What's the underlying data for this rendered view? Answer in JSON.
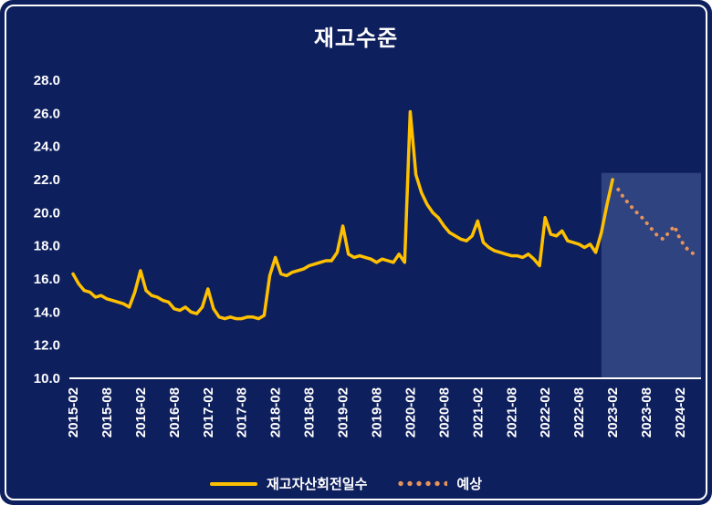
{
  "frame": {
    "background": "#0E1F5D",
    "border_color": "#FFFFFF"
  },
  "chart_data": {
    "type": "line",
    "title": "재고수준",
    "xlabel": "",
    "ylabel": "",
    "ylim": [
      10,
      28
    ],
    "ytick_step": 2,
    "grid": false,
    "legend_position": "bottom",
    "yticks": [
      "28.0",
      "26.0",
      "24.0",
      "22.0",
      "20.0",
      "18.0",
      "16.0",
      "14.0",
      "12.0",
      "10.0"
    ],
    "xticks": [
      "2015-02",
      "2015-08",
      "2016-02",
      "2016-08",
      "2017-02",
      "2017-08",
      "2018-02",
      "2018-08",
      "2019-02",
      "2019-08",
      "2020-02",
      "2020-08",
      "2021-02",
      "2021-08",
      "2022-02",
      "2022-08",
      "2023-02",
      "2023-08",
      "2024-02"
    ],
    "months_per_tick": 6,
    "x_start_label": "2015-02",
    "forecast_region": {
      "start_month": 94,
      "top_value": 22.4,
      "color": "#2E4380"
    },
    "series": [
      {
        "name": "재고자산회전일수",
        "color": "#FFC000",
        "style": "solid",
        "start_month": 0,
        "values": [
          16.3,
          15.7,
          15.3,
          15.2,
          14.9,
          15.0,
          14.8,
          14.7,
          14.6,
          14.5,
          14.3,
          15.2,
          16.5,
          15.3,
          15.0,
          14.9,
          14.7,
          14.6,
          14.2,
          14.1,
          14.3,
          14.0,
          13.9,
          14.3,
          15.4,
          14.2,
          13.7,
          13.6,
          13.7,
          13.6,
          13.6,
          13.7,
          13.7,
          13.6,
          13.8,
          16.2,
          17.3,
          16.3,
          16.2,
          16.4,
          16.5,
          16.6,
          16.8,
          16.9,
          17.0,
          17.1,
          17.1,
          17.6,
          19.2,
          17.5,
          17.3,
          17.4,
          17.3,
          17.2,
          17.0,
          17.2,
          17.1,
          17.0,
          17.5,
          17.0,
          26.1,
          22.3,
          21.2,
          20.5,
          20.0,
          19.7,
          19.2,
          18.8,
          18.6,
          18.4,
          18.3,
          18.6,
          19.5,
          18.2,
          17.9,
          17.7,
          17.6,
          17.5,
          17.4,
          17.4,
          17.3,
          17.5,
          17.2,
          16.8,
          19.7,
          18.7,
          18.6,
          18.9,
          18.3,
          18.2,
          18.1,
          17.9,
          18.1,
          17.6,
          18.8,
          20.5,
          22.0
        ]
      },
      {
        "name": "예상",
        "color": "#E8935A",
        "style": "dotted",
        "start_month": 97,
        "values": [
          21.4,
          20.9,
          20.5,
          20.1,
          19.8,
          19.4,
          19.0,
          18.6,
          18.4,
          18.8,
          19.2,
          18.4,
          17.9,
          17.6,
          17.4
        ]
      }
    ]
  }
}
